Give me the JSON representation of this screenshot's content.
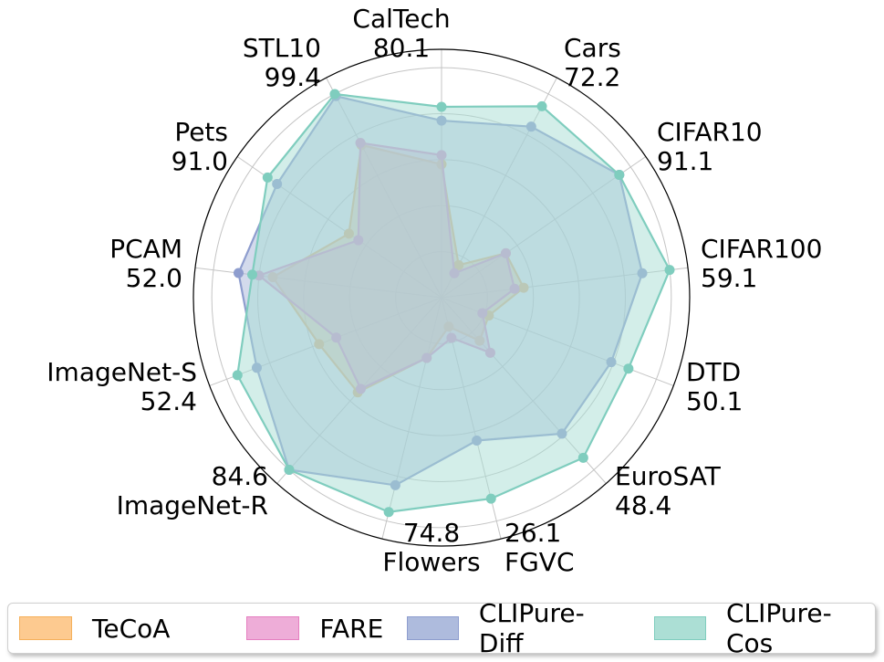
{
  "chart_data": {
    "type": "radar",
    "title": "",
    "categories": [
      {
        "name": "CalTech",
        "value_label": "80.1"
      },
      {
        "name": "Cars",
        "value_label": "72.2"
      },
      {
        "name": "CIFAR10",
        "value_label": "91.1"
      },
      {
        "name": "CIFAR100",
        "value_label": "59.1"
      },
      {
        "name": "DTD",
        "value_label": "50.1"
      },
      {
        "name": "EuroSAT",
        "value_label": "48.4"
      },
      {
        "name": "FGVC",
        "value_label": "26.1"
      },
      {
        "name": "Flowers",
        "value_label": "74.8"
      },
      {
        "name": "ImageNet-R",
        "value_label": "84.6"
      },
      {
        "name": "ImageNet-S",
        "value_label": "52.4"
      },
      {
        "name": "PCAM",
        "value_label": "52.0"
      },
      {
        "name": "Pets",
        "value_label": "91.0"
      },
      {
        "name": "STL10",
        "value_label": "99.4"
      }
    ],
    "rlim": [
      0,
      1.08
    ],
    "rgrid": [
      0.2,
      0.4,
      0.6,
      0.8,
      1.0
    ],
    "grid": true,
    "legend_position": "bottom",
    "series": [
      {
        "name": "TeCoA",
        "color": "#FDBF6F",
        "line_color": "#F5B05A",
        "values": [
          0.58,
          0.16,
          0.34,
          0.36,
          0.22,
          0.25,
          0.13,
          0.27,
          0.55,
          0.57,
          0.74,
          0.49,
          0.75
        ]
      },
      {
        "name": "FARE",
        "color": "#EBA5D2",
        "line_color": "#E57FC0",
        "values": [
          0.62,
          0.12,
          0.34,
          0.32,
          0.19,
          0.32,
          0.18,
          0.27,
          0.53,
          0.49,
          0.8,
          0.44,
          0.76
        ]
      },
      {
        "name": "CLIPure-Diff",
        "color": "#A7B6D9",
        "line_color": "#8E9DCE",
        "values": [
          0.77,
          0.84,
          0.94,
          0.88,
          0.79,
          0.79,
          0.64,
          0.84,
          1.0,
          0.86,
          0.89,
          0.87,
          0.99
        ]
      },
      {
        "name": "CLIPure-Cos",
        "color": "#A8DDD3",
        "line_color": "#7FCDBE",
        "values": [
          0.83,
          0.94,
          0.94,
          1.0,
          0.87,
          0.93,
          0.9,
          0.96,
          1.0,
          0.95,
          0.83,
          0.92,
          1.0
        ]
      }
    ]
  }
}
